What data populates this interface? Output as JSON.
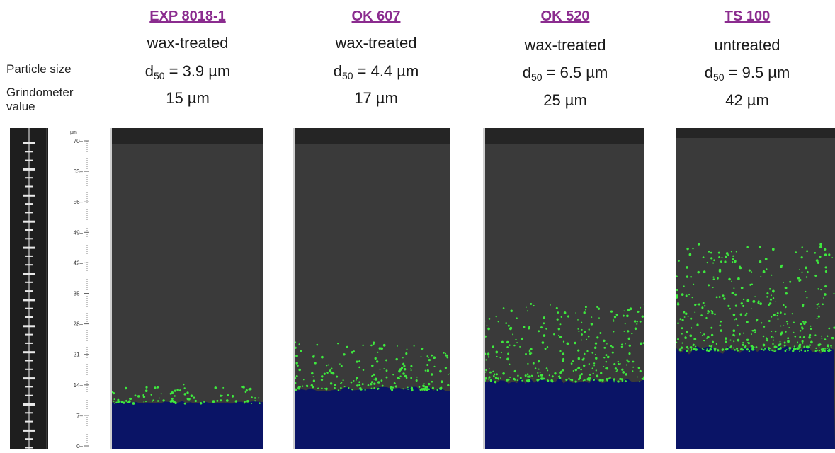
{
  "row_labels": {
    "particle_size": "Particle size",
    "grindometer_line1": "Grindometer",
    "grindometer_line2": "value"
  },
  "samples": [
    {
      "name": "EXP 8018-1",
      "treatment": "wax-treated",
      "d50_prefix": "d",
      "d50_sub": "50",
      "d50_value": " = 3.9 µm",
      "grindometer": "15 µm"
    },
    {
      "name": "OK 607",
      "treatment": "wax-treated",
      "d50_prefix": "d",
      "d50_sub": "50",
      "d50_value": " = 4.4 µm",
      "grindometer": "17 µm"
    },
    {
      "name": "OK 520",
      "treatment": "wax-treated",
      "d50_prefix": "d",
      "d50_sub": "50",
      "d50_value": " = 6.5 µm",
      "grindometer": "25 µm"
    },
    {
      "name": "TS 100",
      "treatment": "untreated",
      "d50_prefix": "d",
      "d50_sub": "50",
      "d50_value": " = 9.5 µm",
      "grindometer": "42 µm"
    }
  ],
  "scale": {
    "unit": "µm",
    "ticks": [
      "70",
      "63",
      "56",
      "49",
      "42",
      "35",
      "28",
      "21",
      "14",
      "7",
      "0"
    ],
    "max": 70
  },
  "fill_levels_um": [
    10,
    13,
    15,
    22
  ],
  "colors": {
    "title": "#8b2c8f",
    "fill": "#0a1466",
    "particles": "#3ee83e",
    "panel_bg": "#3a3a3a"
  }
}
